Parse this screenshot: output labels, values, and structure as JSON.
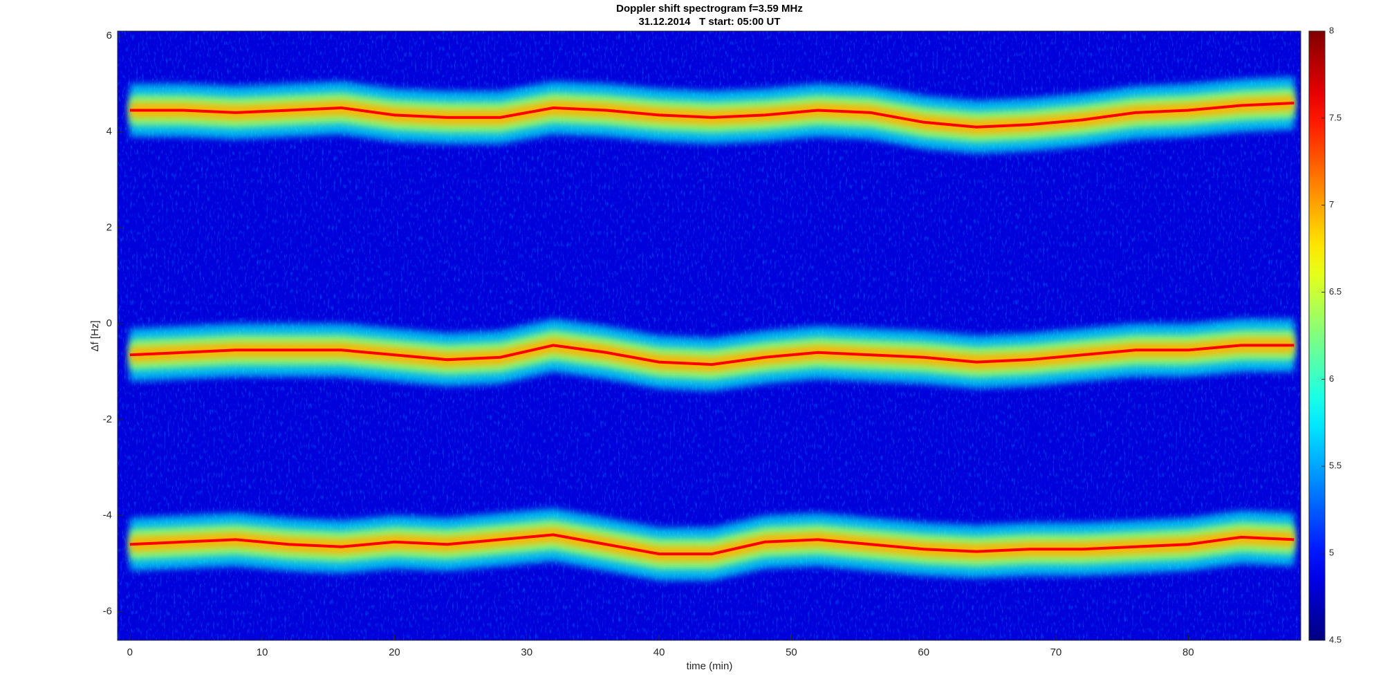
{
  "chart_data": {
    "type": "spectrogram",
    "title": "Doppler shift spectrogram f=3.59 MHz",
    "subtitle": "31.12.2014   T start: 05:00 UT",
    "xlabel": "time (min)",
    "ylabel": "Δf [Hz]",
    "x": [
      0,
      4,
      8,
      12,
      16,
      20,
      24,
      28,
      32,
      36,
      40,
      44,
      48,
      52,
      56,
      60,
      64,
      68,
      72,
      76,
      80,
      84,
      88
    ],
    "series": [
      {
        "values": [
          4.45,
          4.45,
          4.4,
          4.45,
          4.5,
          4.35,
          4.3,
          4.3,
          4.5,
          4.45,
          4.35,
          4.3,
          4.35,
          4.45,
          4.4,
          4.2,
          4.1,
          4.15,
          4.25,
          4.4,
          4.45,
          4.55,
          4.6
        ]
      },
      {
        "values": [
          -0.65,
          -0.6,
          -0.55,
          -0.55,
          -0.55,
          -0.65,
          -0.75,
          -0.7,
          -0.45,
          -0.6,
          -0.8,
          -0.85,
          -0.7,
          -0.6,
          -0.65,
          -0.7,
          -0.8,
          -0.75,
          -0.65,
          -0.55,
          -0.55,
          -0.45,
          -0.45
        ]
      },
      {
        "values": [
          -4.6,
          -4.55,
          -4.5,
          -4.6,
          -4.65,
          -4.55,
          -4.6,
          -4.5,
          -4.4,
          -4.6,
          -4.8,
          -4.8,
          -4.55,
          -4.5,
          -4.6,
          -4.7,
          -4.75,
          -4.7,
          -4.7,
          -4.65,
          -4.6,
          -4.45,
          -4.5
        ]
      }
    ],
    "xlim": [
      -0.93,
      88.5
    ],
    "xticks": [
      0,
      10,
      20,
      30,
      40,
      50,
      60,
      70,
      80
    ],
    "ylim": [
      -6.6,
      6.1
    ],
    "yticks": [
      -6,
      -4,
      -2,
      0,
      2,
      4,
      6
    ],
    "colormap": "jet",
    "clim": [
      4.5,
      8
    ],
    "cticks": [
      4.5,
      5,
      5.5,
      6,
      6.5,
      7,
      7.5,
      8
    ]
  }
}
